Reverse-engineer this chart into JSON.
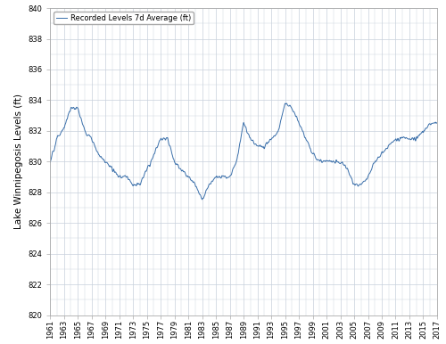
{
  "ylabel": "Lake Winnipegosis Levels (ft)",
  "legend_label": "Recorded Levels 7d Average (ft)",
  "ylim": [
    820,
    840
  ],
  "yticks": [
    820,
    822,
    824,
    826,
    828,
    830,
    832,
    834,
    836,
    838,
    840
  ],
  "year_start": 1961,
  "year_end": 2017,
  "xtick_years": [
    1961,
    1963,
    1965,
    1967,
    1969,
    1971,
    1973,
    1975,
    1977,
    1979,
    1981,
    1983,
    1985,
    1987,
    1989,
    1991,
    1993,
    1995,
    1997,
    1999,
    2001,
    2003,
    2005,
    2007,
    2009,
    2011,
    2013,
    2015,
    2017
  ],
  "line_color": "#3a6faa",
  "line_width": 0.7,
  "grid_color": "#c8d0dc",
  "background_color": "#ffffff",
  "fig_facecolor": "#ffffff",
  "legend_fontsize": 6.0,
  "ylabel_fontsize": 7.5,
  "tick_fontsize": 6.0
}
